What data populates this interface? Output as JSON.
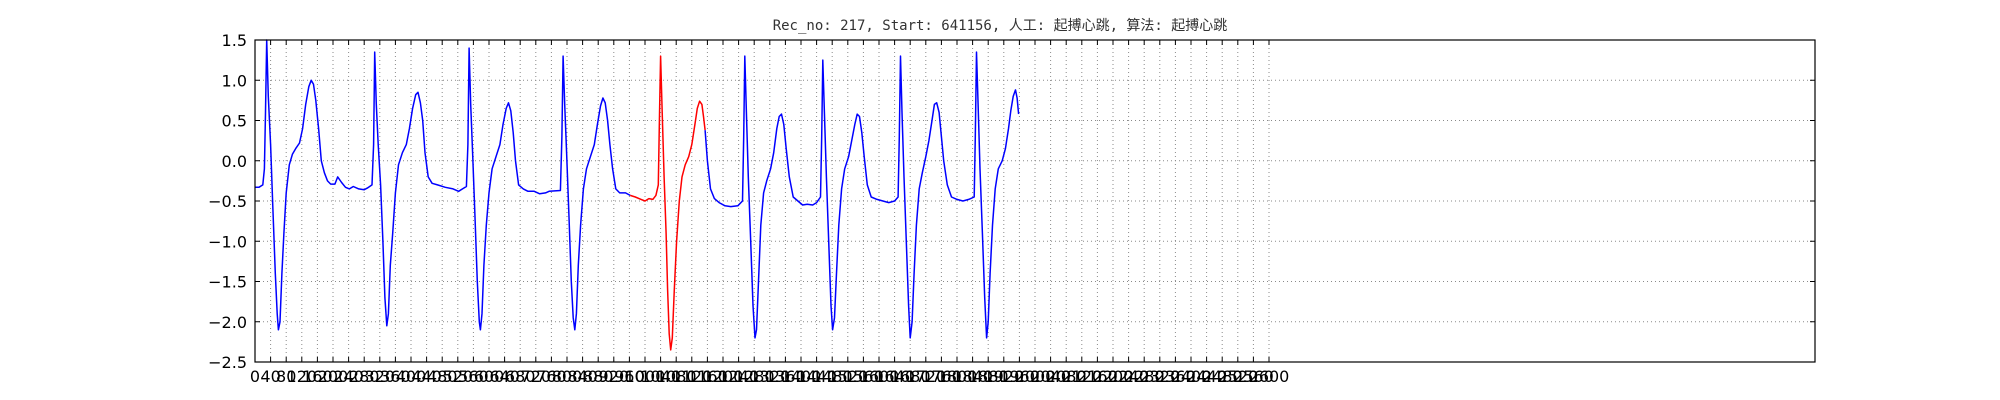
{
  "chart_data": {
    "type": "line",
    "title": "Rec_no: 217, Start: 641156, 人工: 起搏心跳, 算法: 起搏心跳",
    "xlabel": "",
    "ylabel": "",
    "xlim": [
      0,
      4000
    ],
    "ylim": [
      -2.5,
      1.5
    ],
    "grid": true,
    "yticks": [
      1.5,
      1.0,
      0.5,
      0.0,
      -0.5,
      -1.0,
      -1.5,
      -2.0,
      -2.5
    ],
    "ytick_labels": [
      "1.5",
      "1.0",
      "0.5",
      "0.0",
      "−0.5",
      "−1.0",
      "−1.5",
      "−2.0",
      "−2.5"
    ],
    "xticks": [
      0,
      40,
      80,
      120,
      160,
      200,
      240,
      280,
      320,
      360,
      400,
      440,
      480,
      520,
      560,
      600,
      640,
      680,
      720,
      760,
      800,
      840,
      880,
      920,
      960,
      1000,
      1040,
      1080,
      1120,
      1160,
      1200,
      1240,
      1280,
      1320,
      1360,
      1400,
      1440,
      1480,
      1520,
      1560,
      1600,
      1640,
      1680,
      1720,
      1760,
      1800,
      1840,
      1880,
      1920,
      1960,
      2000,
      2040,
      2080,
      2120,
      2160,
      2200,
      2240,
      2280,
      2320,
      2360,
      2400,
      2440,
      2480,
      2520,
      2560,
      2600
    ],
    "xtick_labels": [
      "0",
      "40",
      "80",
      "120",
      "160",
      "200",
      "240",
      "280",
      "320",
      "360",
      "400",
      "440",
      "480",
      "520",
      "560",
      "600",
      "640",
      "680",
      "720",
      "760",
      "800",
      "840",
      "880",
      "920",
      "960",
      "1000",
      "1040",
      "1080",
      "1120",
      "1160",
      "1200",
      "1240",
      "1280",
      "1320",
      "1360",
      "1400",
      "1440",
      "1480",
      "1520",
      "1560",
      "1600",
      "1640",
      "1680",
      "1720",
      "1760",
      "1800",
      "1840",
      "1880",
      "1920",
      "1960",
      "2000",
      "2040",
      "2080",
      "2120",
      "2160",
      "2200",
      "2240",
      "2280",
      "2320",
      "2360",
      "2400",
      "2440",
      "2480",
      "2520",
      "2560",
      "2600"
    ],
    "series": [
      {
        "color": "#0000ff",
        "points": [
          [
            0,
            -0.33
          ],
          [
            10,
            -0.33
          ],
          [
            20,
            -0.3
          ],
          [
            24,
            -0.1
          ],
          [
            27,
            0.6
          ],
          [
            30,
            1.5
          ],
          [
            34,
            0.8
          ],
          [
            40,
            0.2
          ],
          [
            46,
            -0.6
          ],
          [
            52,
            -1.4
          ],
          [
            57,
            -1.9
          ],
          [
            60,
            -2.1
          ],
          [
            64,
            -2.0
          ],
          [
            69,
            -1.4
          ],
          [
            74,
            -0.9
          ],
          [
            80,
            -0.4
          ],
          [
            88,
            -0.05
          ],
          [
            96,
            0.08
          ],
          [
            104,
            0.15
          ],
          [
            114,
            0.22
          ],
          [
            122,
            0.4
          ],
          [
            130,
            0.7
          ],
          [
            138,
            0.92
          ],
          [
            144,
            1.0
          ],
          [
            150,
            0.95
          ],
          [
            156,
            0.75
          ],
          [
            163,
            0.4
          ],
          [
            170,
            0.0
          ],
          [
            178,
            -0.15
          ],
          [
            186,
            -0.25
          ],
          [
            194,
            -0.29
          ],
          [
            205,
            -0.29
          ],
          [
            212,
            -0.2
          ],
          [
            222,
            -0.27
          ],
          [
            232,
            -0.33
          ],
          [
            242,
            -0.35
          ],
          [
            252,
            -0.32
          ],
          [
            266,
            -0.35
          ],
          [
            280,
            -0.36
          ],
          [
            288,
            -0.34
          ],
          [
            300,
            -0.3
          ],
          [
            304,
            0.2
          ],
          [
            307,
            1.35
          ],
          [
            311,
            0.7
          ],
          [
            316,
            0.2
          ],
          [
            322,
            -0.3
          ],
          [
            328,
            -1.0
          ],
          [
            333,
            -1.7
          ],
          [
            338,
            -2.05
          ],
          [
            342,
            -1.9
          ],
          [
            347,
            -1.3
          ],
          [
            353,
            -0.9
          ],
          [
            360,
            -0.4
          ],
          [
            368,
            -0.05
          ],
          [
            378,
            0.1
          ],
          [
            388,
            0.2
          ],
          [
            396,
            0.4
          ],
          [
            404,
            0.65
          ],
          [
            412,
            0.82
          ],
          [
            418,
            0.85
          ],
          [
            424,
            0.72
          ],
          [
            430,
            0.5
          ],
          [
            436,
            0.1
          ],
          [
            444,
            -0.2
          ],
          [
            454,
            -0.28
          ],
          [
            468,
            -0.3
          ],
          [
            488,
            -0.33
          ],
          [
            508,
            -0.35
          ],
          [
            522,
            -0.38
          ],
          [
            532,
            -0.35
          ],
          [
            542,
            -0.32
          ],
          [
            546,
            0.2
          ],
          [
            549,
            1.4
          ],
          [
            553,
            0.7
          ],
          [
            558,
            0.1
          ],
          [
            564,
            -0.7
          ],
          [
            570,
            -1.5
          ],
          [
            575,
            -2.0
          ],
          [
            578,
            -2.1
          ],
          [
            582,
            -1.9
          ],
          [
            587,
            -1.3
          ],
          [
            593,
            -0.8
          ],
          [
            600,
            -0.4
          ],
          [
            608,
            -0.1
          ],
          [
            618,
            0.05
          ],
          [
            628,
            0.2
          ],
          [
            636,
            0.45
          ],
          [
            644,
            0.65
          ],
          [
            650,
            0.72
          ],
          [
            656,
            0.62
          ],
          [
            662,
            0.35
          ],
          [
            668,
            0.0
          ],
          [
            676,
            -0.3
          ],
          [
            688,
            -0.35
          ],
          [
            700,
            -0.38
          ],
          [
            716,
            -0.38
          ],
          [
            730,
            -0.41
          ],
          [
            745,
            -0.4
          ],
          [
            754,
            -0.38
          ],
          [
            783,
            -0.37
          ],
          [
            787,
            0.3
          ],
          [
            790,
            1.3
          ],
          [
            794,
            0.7
          ],
          [
            799,
            0.1
          ],
          [
            805,
            -0.7
          ],
          [
            811,
            -1.5
          ],
          [
            816,
            -1.95
          ],
          [
            820,
            -2.1
          ],
          [
            824,
            -1.9
          ],
          [
            829,
            -1.3
          ],
          [
            835,
            -0.8
          ],
          [
            842,
            -0.35
          ],
          [
            850,
            -0.1
          ],
          [
            860,
            0.05
          ],
          [
            870,
            0.2
          ],
          [
            878,
            0.45
          ],
          [
            886,
            0.68
          ],
          [
            892,
            0.78
          ],
          [
            898,
            0.72
          ],
          [
            904,
            0.5
          ],
          [
            910,
            0.2
          ],
          [
            917,
            -0.1
          ],
          [
            925,
            -0.35
          ],
          [
            935,
            -0.4
          ],
          [
            950,
            -0.4
          ],
          [
            962,
            -0.43
          ]
        ]
      },
      {
        "color": "#ff0000",
        "points": [
          [
            962,
            -0.43
          ],
          [
            975,
            -0.45
          ],
          [
            990,
            -0.48
          ],
          [
            1000,
            -0.5
          ],
          [
            1010,
            -0.47
          ],
          [
            1020,
            -0.48
          ],
          [
            1028,
            -0.43
          ],
          [
            1034,
            -0.3
          ],
          [
            1037,
            0.5
          ],
          [
            1040,
            1.3
          ],
          [
            1044,
            0.6
          ],
          [
            1049,
            -0.2
          ],
          [
            1054,
            -0.9
          ],
          [
            1058,
            -1.6
          ],
          [
            1062,
            -2.15
          ],
          [
            1066,
            -2.35
          ],
          [
            1070,
            -2.2
          ],
          [
            1075,
            -1.6
          ],
          [
            1081,
            -1.0
          ],
          [
            1088,
            -0.5
          ],
          [
            1095,
            -0.2
          ],
          [
            1103,
            -0.05
          ],
          [
            1112,
            0.05
          ],
          [
            1120,
            0.2
          ],
          [
            1128,
            0.45
          ],
          [
            1134,
            0.65
          ],
          [
            1140,
            0.74
          ],
          [
            1146,
            0.7
          ],
          [
            1150,
            0.55
          ],
          [
            1154,
            0.38
          ]
        ]
      },
      {
        "color": "#0000ff",
        "points": [
          [
            1154,
            0.38
          ],
          [
            1160,
            0.0
          ],
          [
            1168,
            -0.35
          ],
          [
            1178,
            -0.47
          ],
          [
            1190,
            -0.52
          ],
          [
            1205,
            -0.56
          ],
          [
            1220,
            -0.57
          ],
          [
            1238,
            -0.56
          ],
          [
            1250,
            -0.5
          ],
          [
            1253,
            0.3
          ],
          [
            1256,
            1.3
          ],
          [
            1260,
            0.6
          ],
          [
            1265,
            -0.2
          ],
          [
            1271,
            -1.0
          ],
          [
            1277,
            -1.8
          ],
          [
            1282,
            -2.2
          ],
          [
            1286,
            -2.1
          ],
          [
            1291,
            -1.5
          ],
          [
            1297,
            -0.8
          ],
          [
            1304,
            -0.4
          ],
          [
            1312,
            -0.25
          ],
          [
            1322,
            -0.1
          ],
          [
            1330,
            0.1
          ],
          [
            1338,
            0.4
          ],
          [
            1344,
            0.55
          ],
          [
            1350,
            0.58
          ],
          [
            1356,
            0.45
          ],
          [
            1362,
            0.15
          ],
          [
            1370,
            -0.2
          ],
          [
            1380,
            -0.45
          ],
          [
            1392,
            -0.5
          ],
          [
            1404,
            -0.55
          ],
          [
            1416,
            -0.54
          ],
          [
            1430,
            -0.55
          ],
          [
            1440,
            -0.52
          ],
          [
            1450,
            -0.45
          ],
          [
            1453,
            0.3
          ],
          [
            1456,
            1.25
          ],
          [
            1460,
            0.6
          ],
          [
            1465,
            -0.2
          ],
          [
            1471,
            -1.0
          ],
          [
            1477,
            -1.8
          ],
          [
            1481,
            -2.1
          ],
          [
            1486,
            -1.95
          ],
          [
            1491,
            -1.4
          ],
          [
            1497,
            -0.8
          ],
          [
            1504,
            -0.35
          ],
          [
            1512,
            -0.1
          ],
          [
            1522,
            0.05
          ],
          [
            1530,
            0.25
          ],
          [
            1538,
            0.45
          ],
          [
            1544,
            0.58
          ],
          [
            1550,
            0.55
          ],
          [
            1556,
            0.35
          ],
          [
            1562,
            0.05
          ],
          [
            1570,
            -0.3
          ],
          [
            1580,
            -0.45
          ],
          [
            1595,
            -0.48
          ],
          [
            1610,
            -0.5
          ],
          [
            1625,
            -0.52
          ],
          [
            1640,
            -0.5
          ],
          [
            1649,
            -0.45
          ],
          [
            1652,
            0.3
          ],
          [
            1655,
            1.3
          ],
          [
            1659,
            0.6
          ],
          [
            1664,
            -0.2
          ],
          [
            1670,
            -1.0
          ],
          [
            1676,
            -1.8
          ],
          [
            1680,
            -2.2
          ],
          [
            1685,
            -2.0
          ],
          [
            1690,
            -1.4
          ],
          [
            1696,
            -0.8
          ],
          [
            1703,
            -0.35
          ],
          [
            1711,
            -0.15
          ],
          [
            1720,
            0.05
          ],
          [
            1728,
            0.25
          ],
          [
            1736,
            0.5
          ],
          [
            1742,
            0.7
          ],
          [
            1748,
            0.72
          ],
          [
            1754,
            0.6
          ],
          [
            1760,
            0.3
          ],
          [
            1766,
            0.0
          ],
          [
            1775,
            -0.3
          ],
          [
            1786,
            -0.45
          ],
          [
            1800,
            -0.48
          ],
          [
            1815,
            -0.5
          ],
          [
            1830,
            -0.48
          ],
          [
            1844,
            -0.45
          ],
          [
            1847,
            0.3
          ],
          [
            1850,
            1.35
          ],
          [
            1854,
            0.7
          ],
          [
            1859,
            -0.1
          ],
          [
            1865,
            -0.9
          ],
          [
            1871,
            -1.7
          ],
          [
            1876,
            -2.2
          ],
          [
            1880,
            -2.0
          ],
          [
            1885,
            -1.4
          ],
          [
            1891,
            -0.8
          ],
          [
            1898,
            -0.35
          ],
          [
            1906,
            -0.1
          ],
          [
            1916,
            0.0
          ],
          [
            1924,
            0.15
          ],
          [
            1932,
            0.4
          ],
          [
            1938,
            0.62
          ],
          [
            1944,
            0.8
          ],
          [
            1950,
            0.88
          ],
          [
            1954,
            0.78
          ],
          [
            1958,
            0.58
          ]
        ]
      }
    ]
  }
}
